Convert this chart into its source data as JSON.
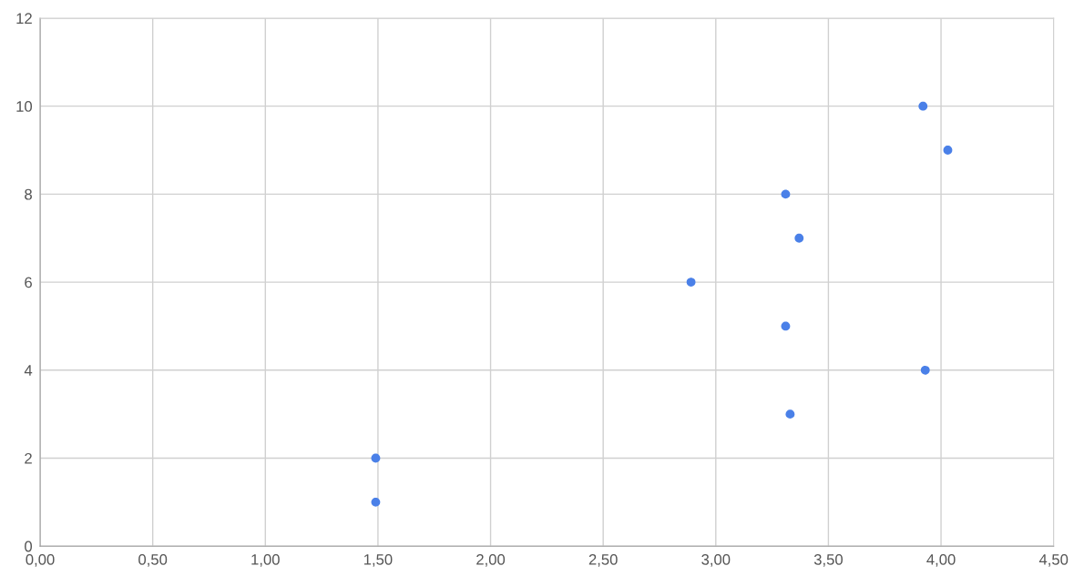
{
  "chart_data": {
    "type": "scatter",
    "x": [
      1.49,
      1.49,
      2.89,
      3.31,
      3.37,
      3.31,
      3.33,
      3.92,
      4.03,
      3.93
    ],
    "series": [
      {
        "color": "#4a80e8",
        "values": [
          1,
          2,
          6,
          8,
          7,
          5,
          3,
          10,
          9,
          4
        ]
      }
    ],
    "xlim": [
      0,
      4.5
    ],
    "xticks": [
      {
        "value": 0,
        "label": "0,00"
      },
      {
        "value": 0.5,
        "label": "0,50"
      },
      {
        "value": 1,
        "label": "1,00"
      },
      {
        "value": 1.5,
        "label": "1,50"
      },
      {
        "value": 2,
        "label": "2,00"
      },
      {
        "value": 2.5,
        "label": "2,50"
      },
      {
        "value": 3,
        "label": "3,00"
      },
      {
        "value": 3.5,
        "label": "3,50"
      },
      {
        "value": 4,
        "label": "4,00"
      },
      {
        "value": 4.5,
        "label": "4,50"
      }
    ],
    "ylim": [
      0,
      12
    ],
    "yticks": [
      0,
      2,
      4,
      6,
      8,
      10,
      12
    ],
    "grid": true,
    "marker": "circle"
  }
}
